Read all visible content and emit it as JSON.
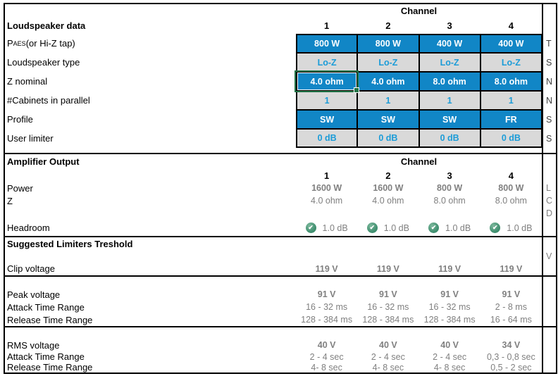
{
  "colors": {
    "cell_blue": "#1186C6",
    "cell_gray": "#D9D9D9",
    "blue_text": "#1B9CD8",
    "gray_text": "#808080",
    "selection_green": "#217346",
    "check_green": "#3E8E6E"
  },
  "table": {
    "channel_header": "Channel",
    "channels": [
      "1",
      "2",
      "3",
      "4"
    ]
  },
  "loudspeaker": {
    "title": "Loudspeaker data",
    "rows": [
      {
        "label_main": "P",
        "label_sub": "AES",
        "label_rest": " (or Hi-Z tap)",
        "values": [
          "800 W",
          "800 W",
          "400 W",
          "400 W"
        ]
      },
      {
        "label": "Loudspeaker type",
        "values": [
          "Lo-Z",
          "Lo-Z",
          "Lo-Z",
          "Lo-Z"
        ]
      },
      {
        "label": "Z nominal",
        "values": [
          "4.0 ohm",
          "4.0 ohm",
          "8.0 ohm",
          "8.0 ohm"
        ]
      },
      {
        "label": "#Cabinets in parallel",
        "values": [
          "1",
          "1",
          "1",
          "1"
        ]
      },
      {
        "label": "Profile",
        "values": [
          "SW",
          "SW",
          "SW",
          "FR"
        ]
      },
      {
        "label": "User limiter",
        "values": [
          "0 dB",
          "0 dB",
          "0 dB",
          "0 dB"
        ]
      }
    ]
  },
  "amplifier": {
    "title": "Amplifier Output",
    "channel_header": "Channel",
    "channels": [
      "1",
      "2",
      "3",
      "4"
    ],
    "power": {
      "label": "Power",
      "values": [
        "1600 W",
        "1600 W",
        "800 W",
        "800 W"
      ]
    },
    "z": {
      "label": "Z",
      "values": [
        "4.0 ohm",
        "4.0 ohm",
        "8.0 ohm",
        "8.0 ohm"
      ]
    },
    "headroom": {
      "label": "Headroom",
      "values": [
        "1.0 dB",
        "1.0 dB",
        "1.0 dB",
        "1.0 dB"
      ],
      "status_icon": "check"
    }
  },
  "limiters": {
    "title": "Suggested Limiters Treshold",
    "clip": {
      "label": "Clip voltage",
      "values": [
        "119 V",
        "119 V",
        "119 V",
        "119 V"
      ]
    },
    "peak": {
      "label": "Peak voltage",
      "values": [
        "91 V",
        "91 V",
        "91 V",
        "91 V"
      ]
    },
    "peak_attack": {
      "label": "Attack Time Range",
      "values": [
        "16 - 32 ms",
        "16 - 32 ms",
        "16 - 32 ms",
        "2 - 8 ms"
      ]
    },
    "peak_release": {
      "label": "Release Time Range",
      "values": [
        "128 - 384 ms",
        "128 - 384 ms",
        "128 - 384 ms",
        "16 - 64 ms"
      ]
    },
    "rms": {
      "label": "RMS voltage",
      "values": [
        "40 V",
        "40 V",
        "40 V",
        "34 V"
      ]
    },
    "rms_attack": {
      "label": "Attack Time Range",
      "values": [
        "2 - 4 sec",
        "2 - 4 sec",
        "2 - 4 sec",
        "0,3 - 0,8 sec"
      ]
    },
    "rms_release": {
      "label": "Release Time Range",
      "values": [
        "4- 8 sec",
        "4- 8 sec",
        "4- 8 sec",
        "0,5 - 2 sec"
      ]
    }
  },
  "clipped": [
    "T",
    "S",
    "N",
    "N",
    "S",
    "S",
    "L",
    "C",
    "D",
    "V"
  ]
}
